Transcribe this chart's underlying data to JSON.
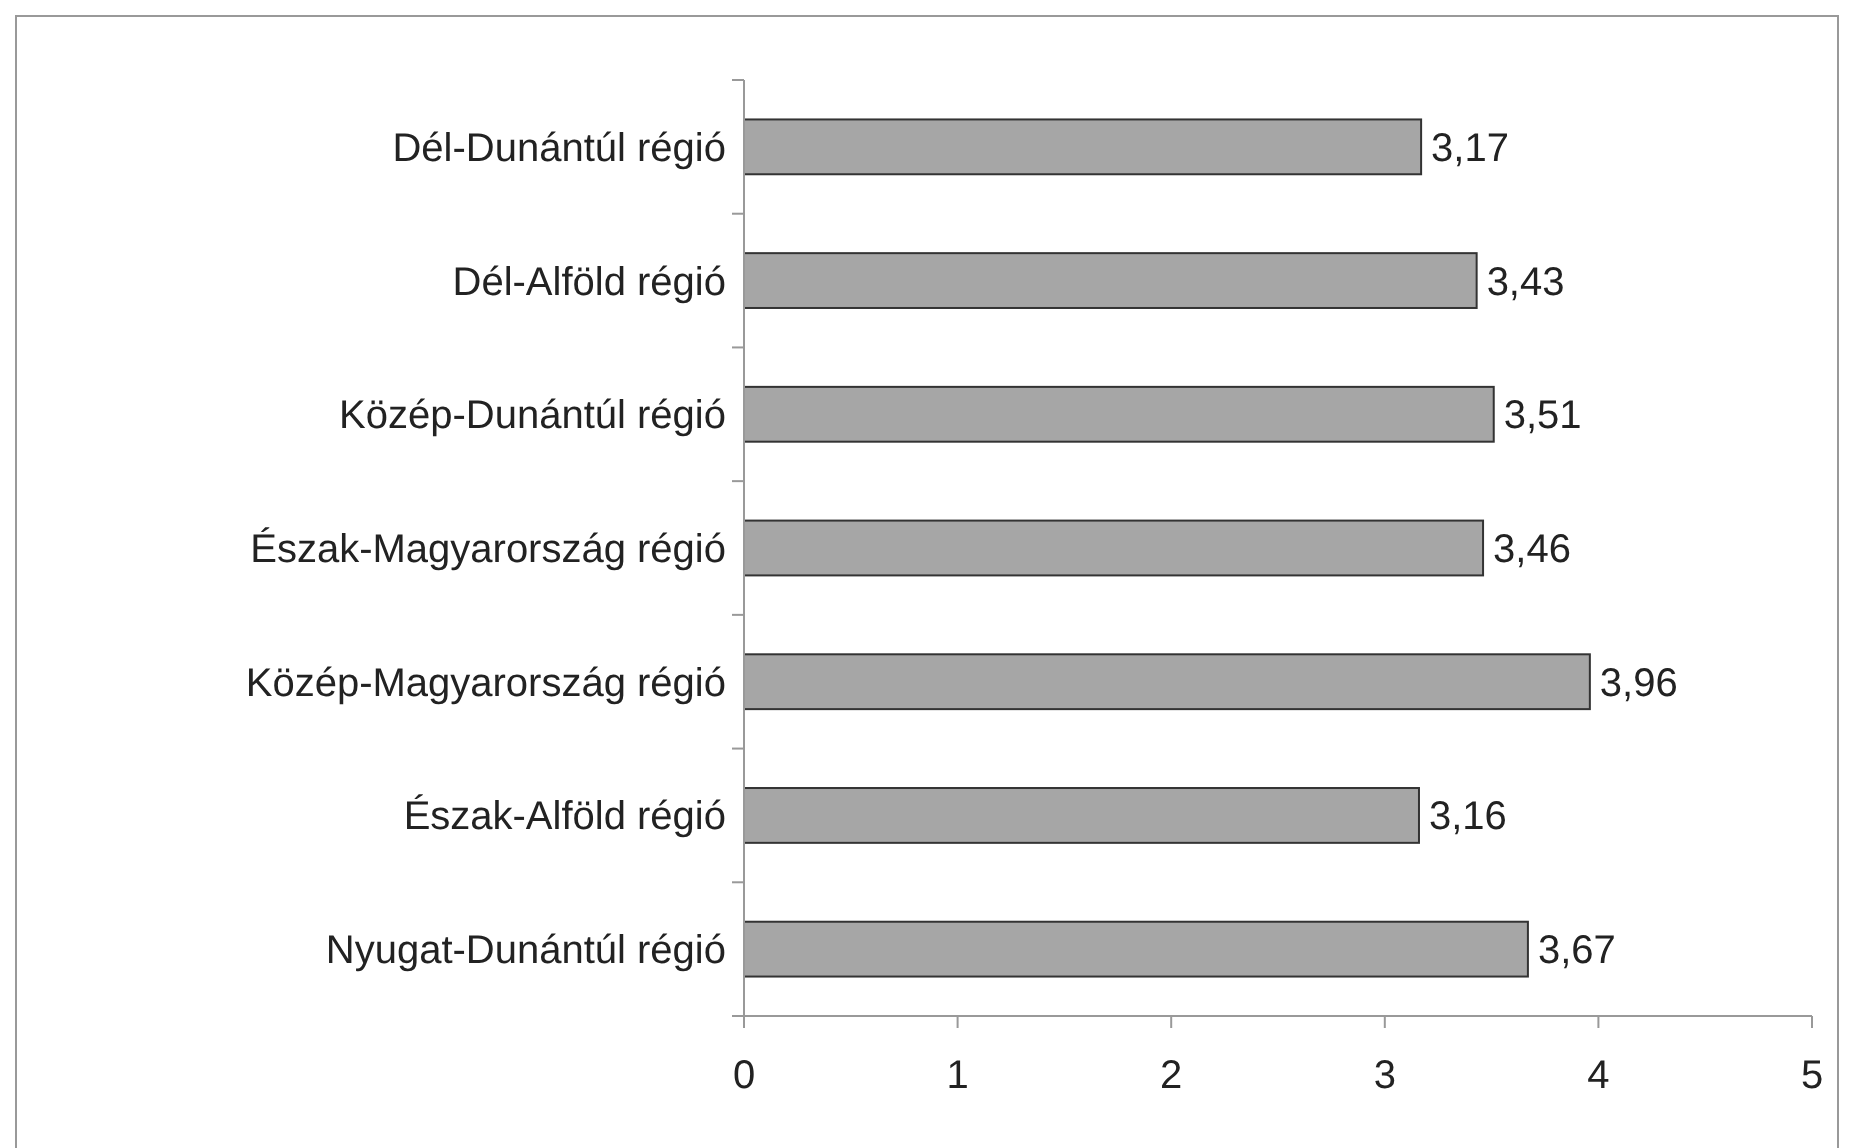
{
  "chart_data": {
    "type": "bar",
    "orientation": "horizontal",
    "categories": [
      "Dél-Dunántúl régió",
      "Dél-Alföld régió",
      "Közép-Dunántúl régió",
      "Észak-Magyarország régió",
      "Közép-Magyarország régió",
      "Észak-Alföld régió",
      "Nyugat-Dunántúl régió"
    ],
    "values": [
      3.17,
      3.43,
      3.51,
      3.46,
      3.96,
      3.16,
      3.67
    ],
    "value_labels": [
      "3,17",
      "3,43",
      "3,51",
      "3,46",
      "3,96",
      "3,16",
      "3,67"
    ],
    "color": "#a6a6a6",
    "xlim": [
      0,
      5
    ],
    "xticks": [
      0,
      1,
      2,
      3,
      4,
      5
    ],
    "grid": false
  }
}
